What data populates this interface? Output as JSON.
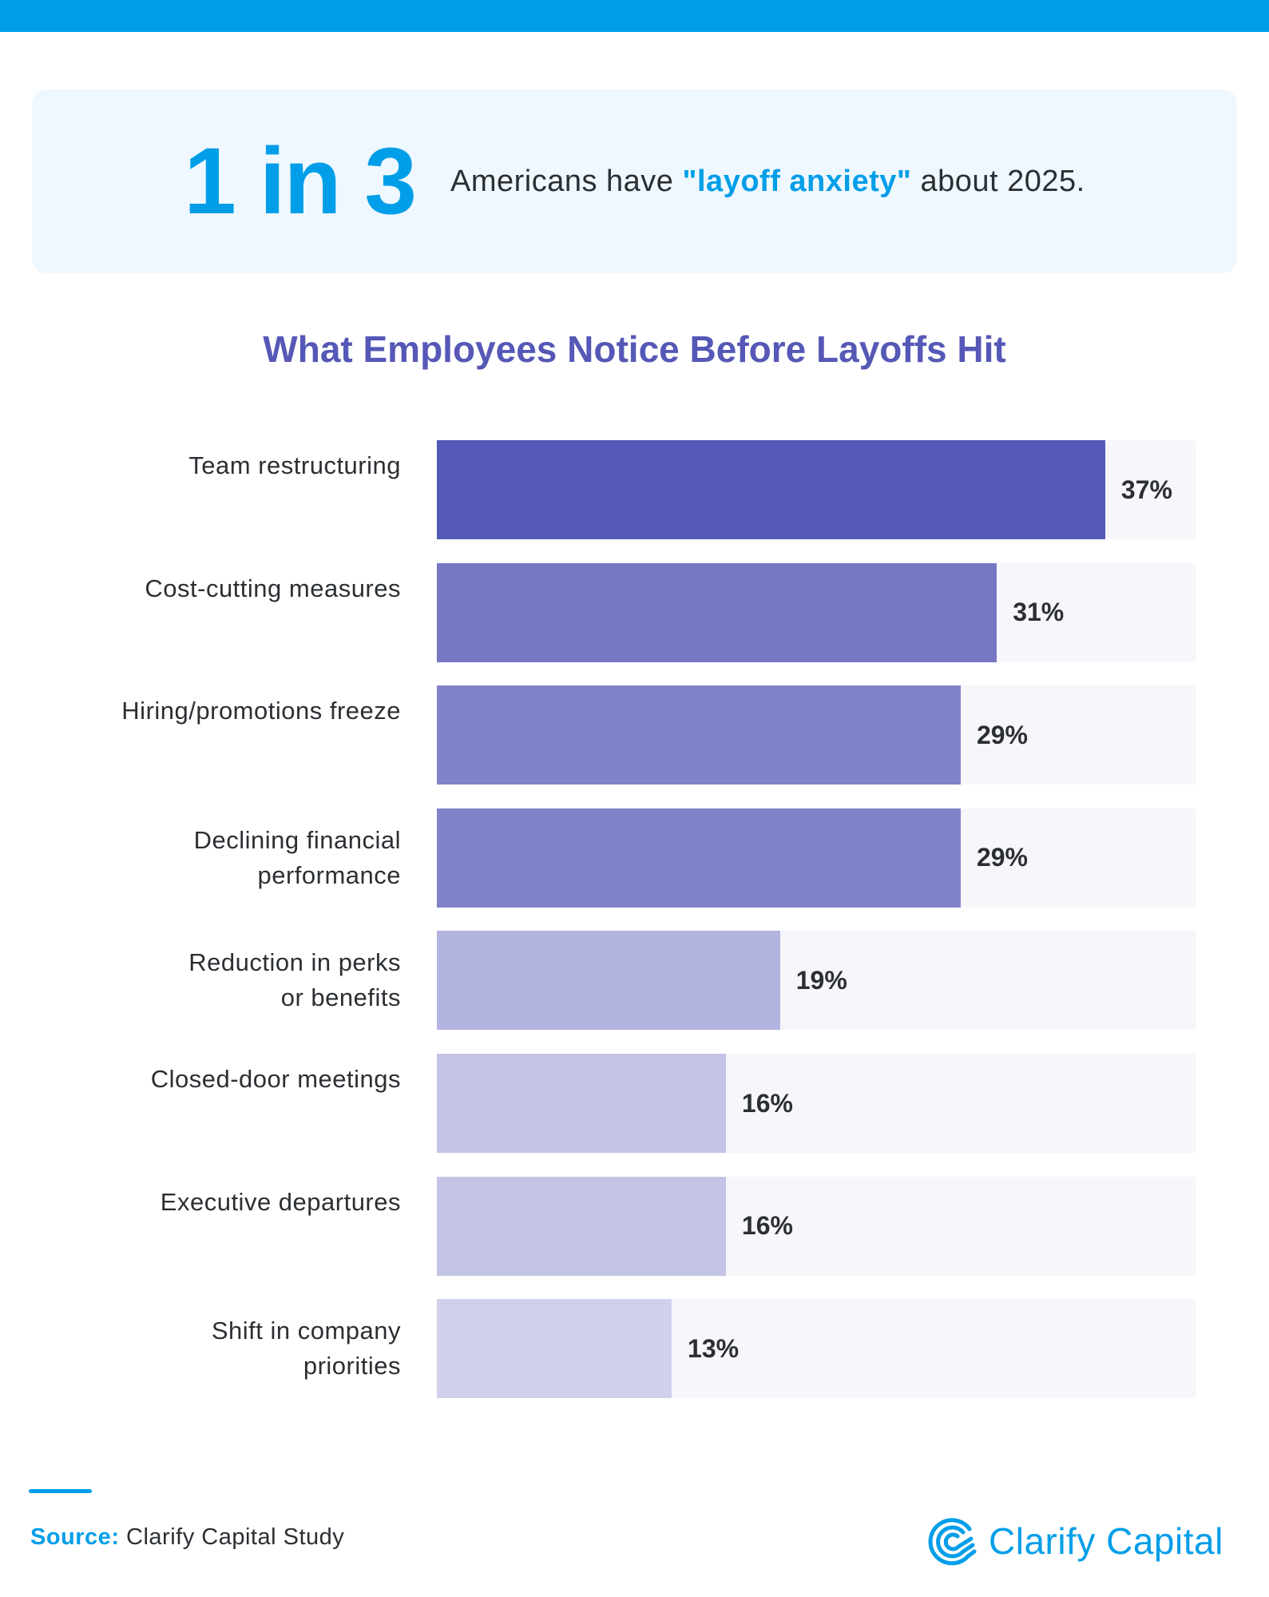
{
  "header": {
    "stat": "1 in 3",
    "text_before": "Americans have ",
    "highlight": "\"layoff anxiety\"",
    "text_after": " about 2025."
  },
  "colors": {
    "brand_blue": "#009ee8",
    "title_purple": "#5558b6",
    "track": "#f6f6fb"
  },
  "chart_data": {
    "type": "bar",
    "orientation": "horizontal",
    "title": "What Employees Notice Before Layoffs Hit",
    "categories": [
      "Team restructuring",
      "Cost-cutting measures",
      "Hiring/promotions freeze",
      "Declining financial performance",
      "Reduction in perks or benefits",
      "Closed-door meetings",
      "Executive departures",
      "Shift in company priorities"
    ],
    "values": [
      37,
      31,
      29,
      29,
      19,
      16,
      16,
      13
    ],
    "value_labels": [
      "37%",
      "31%",
      "29%",
      "29%",
      "19%",
      "16%",
      "16%",
      "13%"
    ],
    "bar_colors": [
      "#5558b6",
      "#7677c2",
      "#8083c8",
      "#8083c8",
      "#b4b4e1",
      "#c3c3e5",
      "#c3c3e5",
      "#d1d0ec"
    ],
    "xlim": [
      0,
      42
    ],
    "grid": false,
    "legend": "none"
  },
  "footer": {
    "source_label": "Source:",
    "source_text": " Clarify Capital Study",
    "logo_text": "Clarify Capital",
    "logo_icon": "clarify-capital-logo-icon"
  }
}
